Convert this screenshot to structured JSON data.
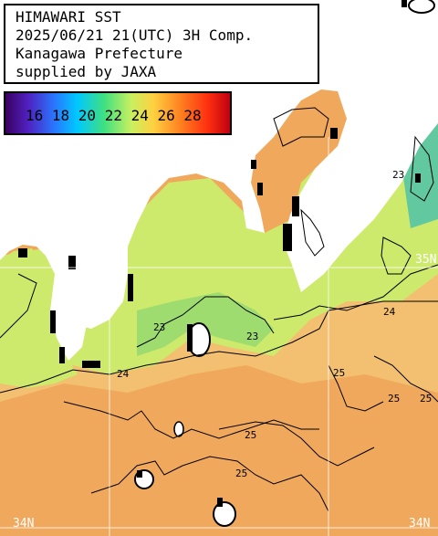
{
  "header": {
    "line1": "HIMAWARI SST",
    "line2": "2025/06/21 21(UTC) 3H Comp.",
    "line3": "Kanagawa Prefecture",
    "line4": "supplied by JAXA"
  },
  "legend": {
    "labels": "16 18 20 22 24 26 28",
    "colors": [
      "#3a0060",
      "#3060ff",
      "#00c8ff",
      "#40e080",
      "#c8f060",
      "#ffd040",
      "#ff8020",
      "#e00010"
    ]
  },
  "contour_labels": [
    "23",
    "23",
    "24",
    "25",
    "25",
    "25",
    "25",
    "25",
    "24",
    "23"
  ],
  "grid_labels": {
    "lat_35n": "35N",
    "lat_34n_left": "34N",
    "lat_34n_right": "34N"
  },
  "colors": {
    "land": "#ffffff",
    "sea_cool": "#c8ee6a",
    "sea_mid": "#f0d86a",
    "sea_warm": "#f2a45a",
    "cloud_mask": "#000000"
  }
}
